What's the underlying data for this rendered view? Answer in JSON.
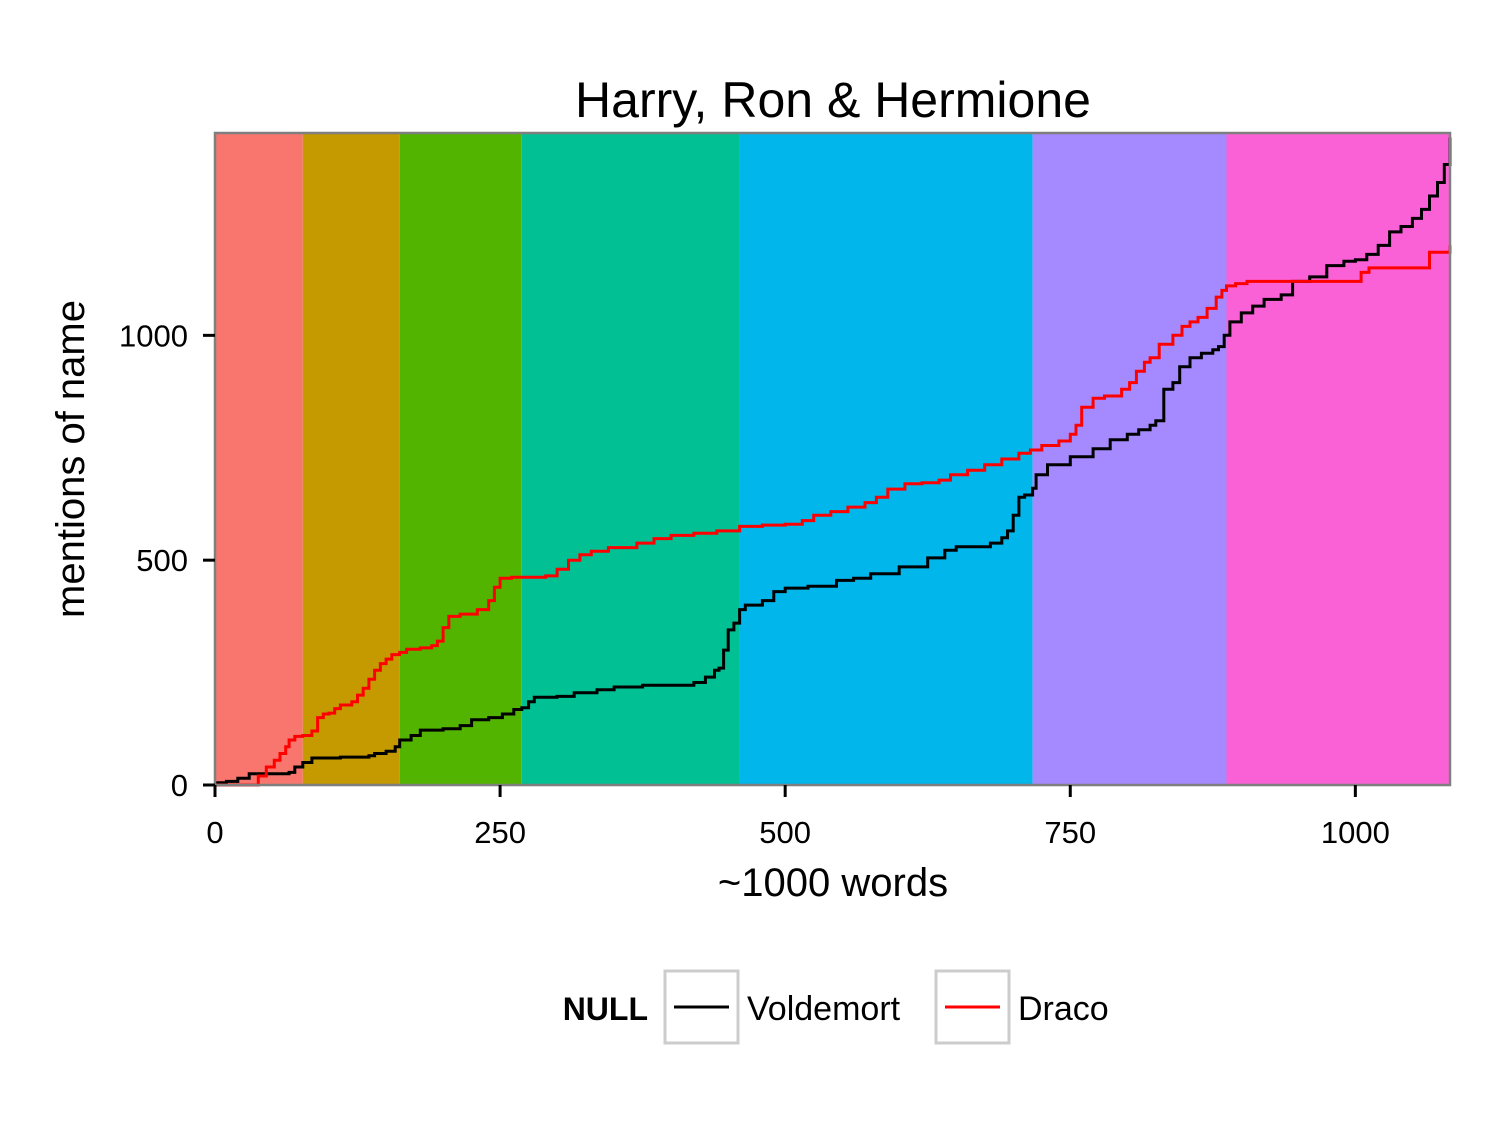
{
  "chart_data": {
    "type": "line",
    "title": "Harry, Ron & Hermione",
    "xlabel": "~1000 words",
    "ylabel": "mentions of name",
    "xlim": [
      0,
      1083
    ],
    "ylim": [
      0,
      1450
    ],
    "xticks": [
      0,
      250,
      500,
      750,
      1000
    ],
    "yticks": [
      0,
      500,
      1000
    ],
    "xtick_labels": [
      "0",
      "250",
      "500",
      "750",
      "1000"
    ],
    "ytick_labels": [
      "0",
      "500",
      "1000"
    ],
    "grid": false,
    "legend": {
      "title": "NULL",
      "placement": "bottom",
      "entries": [
        "Voldemort",
        "Draco"
      ]
    },
    "bands": [
      {
        "start": 0,
        "end": 77,
        "color": "#F8766D"
      },
      {
        "start": 77,
        "end": 162,
        "color": "#C49A00"
      },
      {
        "start": 162,
        "end": 269,
        "color": "#53B400"
      },
      {
        "start": 269,
        "end": 460,
        "color": "#00C094"
      },
      {
        "start": 460,
        "end": 717,
        "color": "#00B6EB"
      },
      {
        "start": 717,
        "end": 887,
        "color": "#A58AFF"
      },
      {
        "start": 887,
        "end": 1083,
        "color": "#FB61D7"
      }
    ],
    "series": [
      {
        "name": "Voldemort",
        "color": "#000000",
        "points": [
          [
            0,
            5
          ],
          [
            10,
            8
          ],
          [
            20,
            15
          ],
          [
            30,
            25
          ],
          [
            50,
            25
          ],
          [
            65,
            28
          ],
          [
            70,
            40
          ],
          [
            77,
            50
          ],
          [
            85,
            60
          ],
          [
            110,
            62
          ],
          [
            135,
            65
          ],
          [
            140,
            70
          ],
          [
            150,
            75
          ],
          [
            158,
            85
          ],
          [
            162,
            100
          ],
          [
            172,
            110
          ],
          [
            180,
            122
          ],
          [
            200,
            125
          ],
          [
            215,
            132
          ],
          [
            225,
            145
          ],
          [
            240,
            150
          ],
          [
            252,
            158
          ],
          [
            262,
            168
          ],
          [
            269,
            172
          ],
          [
            275,
            185
          ],
          [
            280,
            195
          ],
          [
            300,
            197
          ],
          [
            315,
            205
          ],
          [
            335,
            212
          ],
          [
            350,
            218
          ],
          [
            375,
            222
          ],
          [
            400,
            222
          ],
          [
            420,
            228
          ],
          [
            430,
            240
          ],
          [
            438,
            255
          ],
          [
            442,
            260
          ],
          [
            446,
            300
          ],
          [
            450,
            345
          ],
          [
            455,
            360
          ],
          [
            460,
            390
          ],
          [
            465,
            400
          ],
          [
            480,
            410
          ],
          [
            490,
            430
          ],
          [
            500,
            438
          ],
          [
            520,
            442
          ],
          [
            545,
            455
          ],
          [
            560,
            460
          ],
          [
            575,
            470
          ],
          [
            600,
            485
          ],
          [
            625,
            505
          ],
          [
            640,
            522
          ],
          [
            650,
            530
          ],
          [
            670,
            530
          ],
          [
            680,
            538
          ],
          [
            690,
            550
          ],
          [
            695,
            565
          ],
          [
            700,
            600
          ],
          [
            705,
            640
          ],
          [
            710,
            645
          ],
          [
            717,
            660
          ],
          [
            720,
            690
          ],
          [
            730,
            712
          ],
          [
            750,
            730
          ],
          [
            770,
            748
          ],
          [
            785,
            768
          ],
          [
            800,
            780
          ],
          [
            810,
            790
          ],
          [
            820,
            800
          ],
          [
            825,
            810
          ],
          [
            832,
            880
          ],
          [
            840,
            895
          ],
          [
            846,
            930
          ],
          [
            855,
            950
          ],
          [
            865,
            960
          ],
          [
            875,
            968
          ],
          [
            880,
            975
          ],
          [
            885,
            1000
          ],
          [
            890,
            1030
          ],
          [
            900,
            1050
          ],
          [
            910,
            1065
          ],
          [
            920,
            1080
          ],
          [
            935,
            1090
          ],
          [
            945,
            1120
          ],
          [
            960,
            1130
          ],
          [
            975,
            1155
          ],
          [
            990,
            1165
          ],
          [
            1000,
            1168
          ],
          [
            1010,
            1180
          ],
          [
            1020,
            1200
          ],
          [
            1030,
            1230
          ],
          [
            1040,
            1242
          ],
          [
            1050,
            1260
          ],
          [
            1058,
            1280
          ],
          [
            1065,
            1310
          ],
          [
            1072,
            1340
          ],
          [
            1078,
            1380
          ],
          [
            1083,
            1440
          ]
        ]
      },
      {
        "name": "Draco",
        "color": "#FF0000",
        "points": [
          [
            0,
            0
          ],
          [
            32,
            0
          ],
          [
            38,
            20
          ],
          [
            45,
            40
          ],
          [
            52,
            55
          ],
          [
            57,
            70
          ],
          [
            62,
            85
          ],
          [
            65,
            100
          ],
          [
            70,
            108
          ],
          [
            77,
            110
          ],
          [
            85,
            120
          ],
          [
            90,
            150
          ],
          [
            95,
            158
          ],
          [
            100,
            160
          ],
          [
            105,
            170
          ],
          [
            110,
            178
          ],
          [
            120,
            185
          ],
          [
            125,
            200
          ],
          [
            130,
            215
          ],
          [
            135,
            235
          ],
          [
            140,
            255
          ],
          [
            145,
            270
          ],
          [
            150,
            280
          ],
          [
            155,
            290
          ],
          [
            162,
            295
          ],
          [
            168,
            302
          ],
          [
            180,
            305
          ],
          [
            190,
            310
          ],
          [
            195,
            320
          ],
          [
            200,
            350
          ],
          [
            205,
            375
          ],
          [
            215,
            380
          ],
          [
            230,
            390
          ],
          [
            240,
            410
          ],
          [
            245,
            440
          ],
          [
            250,
            460
          ],
          [
            260,
            462
          ],
          [
            290,
            465
          ],
          [
            300,
            480
          ],
          [
            310,
            500
          ],
          [
            320,
            512
          ],
          [
            330,
            520
          ],
          [
            345,
            528
          ],
          [
            370,
            538
          ],
          [
            385,
            548
          ],
          [
            400,
            555
          ],
          [
            420,
            560
          ],
          [
            440,
            565
          ],
          [
            460,
            575
          ],
          [
            480,
            578
          ],
          [
            500,
            580
          ],
          [
            515,
            588
          ],
          [
            525,
            600
          ],
          [
            540,
            608
          ],
          [
            555,
            618
          ],
          [
            570,
            628
          ],
          [
            580,
            640
          ],
          [
            590,
            658
          ],
          [
            605,
            670
          ],
          [
            620,
            672
          ],
          [
            635,
            678
          ],
          [
            645,
            690
          ],
          [
            660,
            700
          ],
          [
            675,
            712
          ],
          [
            690,
            725
          ],
          [
            705,
            738
          ],
          [
            715,
            745
          ],
          [
            725,
            755
          ],
          [
            740,
            765
          ],
          [
            750,
            780
          ],
          [
            755,
            800
          ],
          [
            760,
            840
          ],
          [
            770,
            860
          ],
          [
            780,
            865
          ],
          [
            795,
            880
          ],
          [
            802,
            895
          ],
          [
            808,
            920
          ],
          [
            815,
            940
          ],
          [
            820,
            950
          ],
          [
            828,
            980
          ],
          [
            840,
            1000
          ],
          [
            848,
            1020
          ],
          [
            855,
            1030
          ],
          [
            862,
            1040
          ],
          [
            870,
            1060
          ],
          [
            878,
            1085
          ],
          [
            883,
            1100
          ],
          [
            887,
            1110
          ],
          [
            895,
            1115
          ],
          [
            905,
            1120
          ],
          [
            1000,
            1120
          ],
          [
            1005,
            1140
          ],
          [
            1012,
            1150
          ],
          [
            1060,
            1150
          ],
          [
            1065,
            1185
          ],
          [
            1083,
            1200
          ]
        ]
      }
    ]
  }
}
